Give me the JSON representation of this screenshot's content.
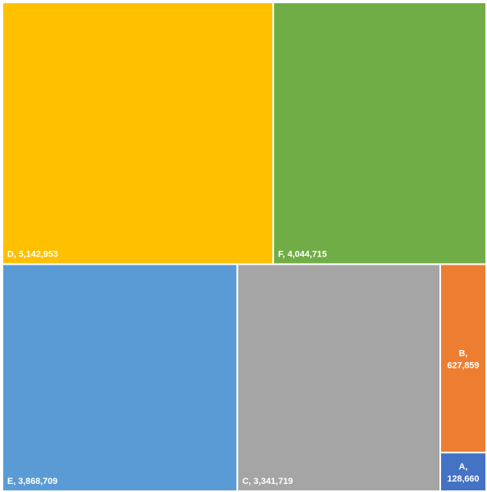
{
  "chart_data": {
    "type": "treemap",
    "values": [
      5142953,
      4044715,
      3868709,
      3341719,
      627859,
      128660
    ],
    "value_labels": [
      "D, 5,142,953",
      "F, 4,044,715",
      "E, 3,868,709",
      "C, 3,341,719",
      "B, 627,859",
      "A, 128,660"
    ],
    "colors": [
      "#ffc000",
      "#70ad47",
      "#5b9bd5",
      "#a5a5a5",
      "#ed7d31",
      "#4472c4"
    ]
  }
}
